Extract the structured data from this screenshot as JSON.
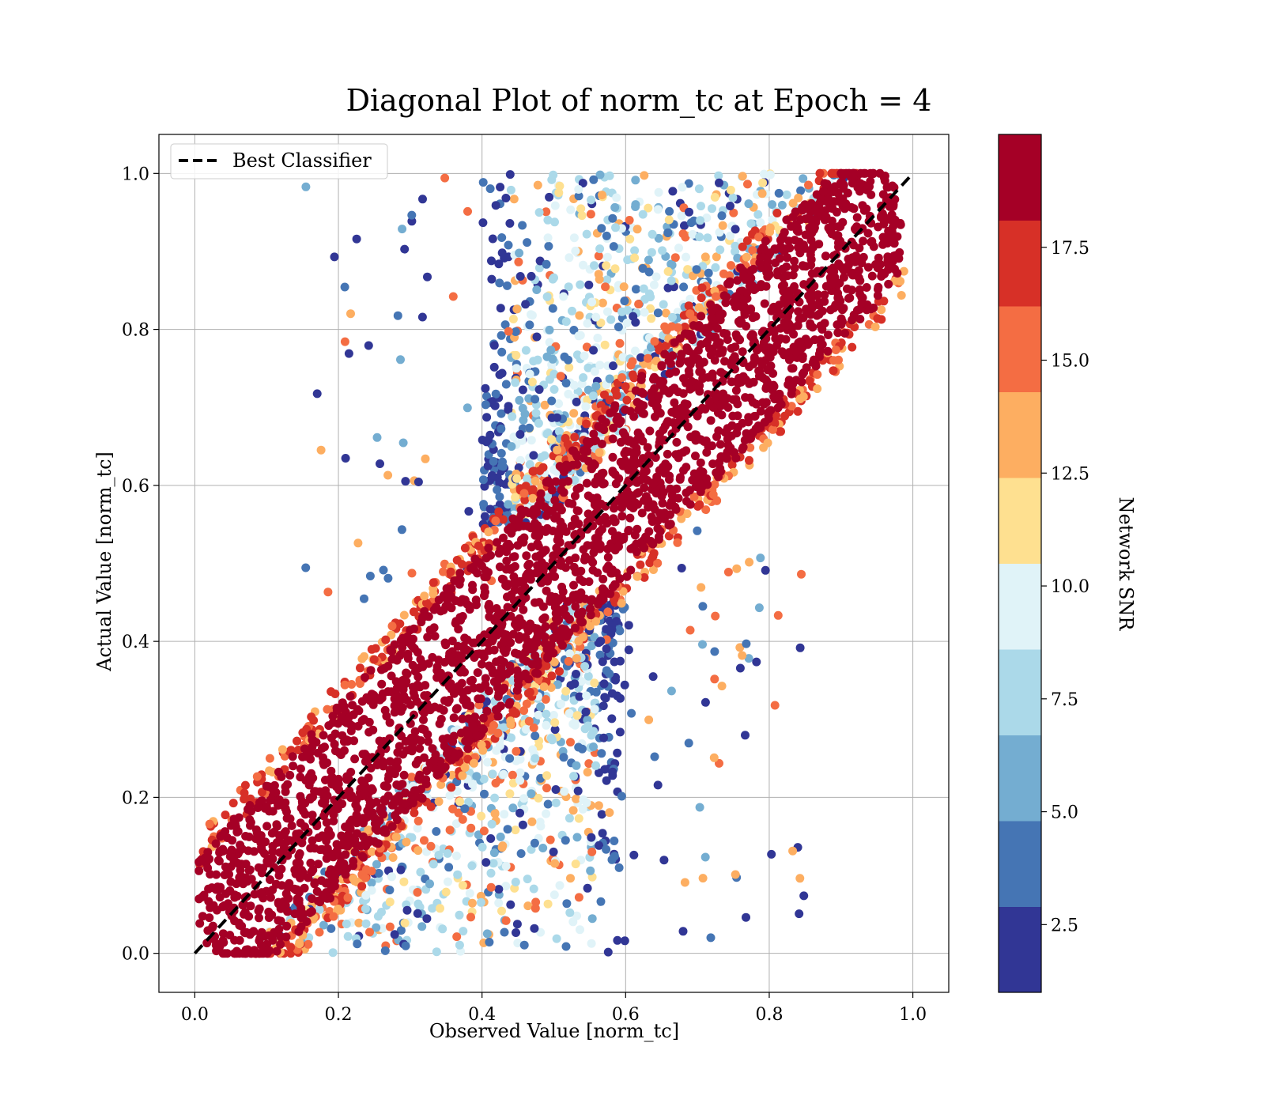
{
  "chart_data": {
    "type": "scatter",
    "title": "Diagonal Plot of norm_tc at Epoch = 4",
    "xlabel": "Observed Value [norm_tc]",
    "ylabel": "Actual Value [norm_tc]",
    "xlim": [
      -0.05,
      1.05
    ],
    "ylim": [
      -0.05,
      1.05
    ],
    "x_ticks": [
      0.0,
      0.2,
      0.4,
      0.6,
      0.8,
      1.0
    ],
    "y_ticks": [
      0.0,
      0.2,
      0.4,
      0.6,
      0.8,
      1.0
    ],
    "x_tick_labels": [
      "0.0",
      "0.2",
      "0.4",
      "0.6",
      "0.8",
      "1.0"
    ],
    "y_tick_labels": [
      "0.0",
      "0.2",
      "0.4",
      "0.6",
      "0.8",
      "1.0"
    ],
    "grid": true,
    "legend": {
      "placement": "upper-left",
      "entries": [
        {
          "label": "Best Classifier",
          "style": "dashed-black-line"
        }
      ]
    },
    "reference_line": {
      "x": [
        0.0,
        1.0
      ],
      "y": [
        0.0,
        1.0
      ],
      "label": "Best Classifier",
      "color": "#000000"
    },
    "colorbar": {
      "label": "Network SNR",
      "range": [
        1.0,
        20.0
      ],
      "ticks": [
        2.5,
        5.0,
        7.5,
        10.0,
        12.5,
        15.0,
        17.5
      ],
      "tick_labels": [
        "2.5",
        "5.0",
        "7.5",
        "10.0",
        "12.5",
        "15.0",
        "17.5"
      ],
      "colors": [
        "#313695",
        "#4575b4",
        "#74add1",
        "#abd9e9",
        "#e0f3f8",
        "#fee090",
        "#fdae61",
        "#f46d43",
        "#d73027",
        "#a50026"
      ]
    },
    "point_bands": [
      {
        "snr": 18.5,
        "color": "#a50026",
        "description": "dense band along the diagonal, half-width about 0.08",
        "x_range": [
          0.01,
          0.98
        ],
        "y_range": [
          0.0,
          1.0
        ]
      },
      {
        "snr": 8.0,
        "color": "#abd9e9",
        "description": "upper-left cloud, observed approx. 0.4–0.75 for actual 0.6–1.0",
        "x_range": [
          0.4,
          0.75
        ],
        "y_range": [
          0.6,
          1.0
        ]
      },
      {
        "snr": 8.0,
        "color": "#abd9e9",
        "description": "lower-right cloud, observed approx. 0.25–0.6 for actual 0.0–0.4",
        "x_range": [
          0.25,
          0.6
        ],
        "y_range": [
          0.0,
          0.4
        ]
      }
    ]
  }
}
